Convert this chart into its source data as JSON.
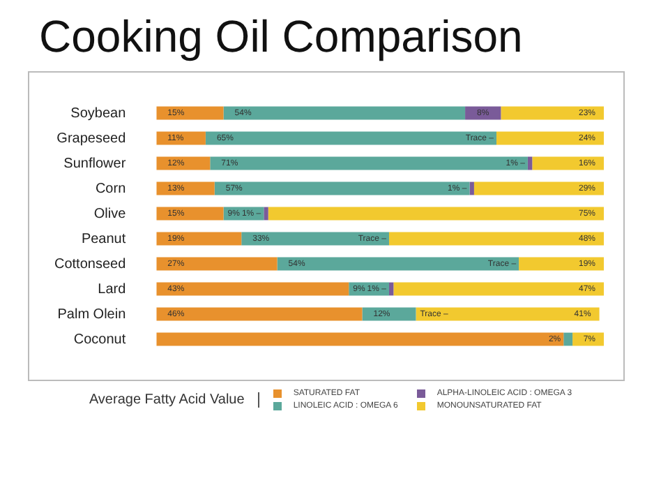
{
  "chart_data": {
    "type": "bar",
    "orientation": "horizontal",
    "stacked": true,
    "title": "Cooking Oil Comparison",
    "legend_title": "Average Fatty Acid Value",
    "legend": "bottom",
    "tick_labels": "y",
    "grid": false,
    "xlim": [
      0,
      100
    ],
    "categories": [
      "Soybean",
      "Grapeseed",
      "Sunflower",
      "Corn",
      "Olive",
      "Peanut",
      "Cottonseed",
      "Lard",
      "Palm Olein",
      "Coconut"
    ],
    "series": [
      {
        "name": "SATURATED FAT",
        "color": "#e8912d",
        "values": [
          15,
          11,
          12,
          13,
          15,
          19,
          27,
          43,
          46,
          91
        ],
        "value_labels": [
          "15%",
          "11%",
          "12%",
          "13%",
          "15%",
          "19%",
          "27%",
          "43%",
          "46%",
          null
        ]
      },
      {
        "name": "LINOLEIC ACID : OMEGA 6",
        "color": "#5ba89b",
        "values": [
          54,
          65,
          71,
          57,
          9,
          33,
          54,
          9,
          12,
          2
        ],
        "value_labels": [
          "54%",
          "65%",
          "71%",
          "57%",
          "9%",
          "33%",
          "54%",
          "9%",
          "12%",
          "2%"
        ]
      },
      {
        "name": "ALPHA-LINOLEIC ACID : OMEGA 3",
        "color": "#7a5b99",
        "values": [
          8,
          null,
          1,
          1,
          1,
          null,
          null,
          1,
          null,
          null
        ],
        "value_labels": [
          "8%",
          "Trace –",
          "1% –",
          "1% –",
          "1% –",
          "Trace –",
          "Trace –",
          "1% –",
          "Trace –",
          null
        ]
      },
      {
        "name": "MONOUNSATURATED FAT",
        "color": "#f2c92f",
        "values": [
          23,
          24,
          16,
          29,
          75,
          48,
          19,
          47,
          41,
          7
        ],
        "value_labels": [
          "23%",
          "24%",
          "16%",
          "29%",
          "75%",
          "48%",
          "19%",
          "47%",
          "41%",
          "7%"
        ]
      }
    ]
  }
}
